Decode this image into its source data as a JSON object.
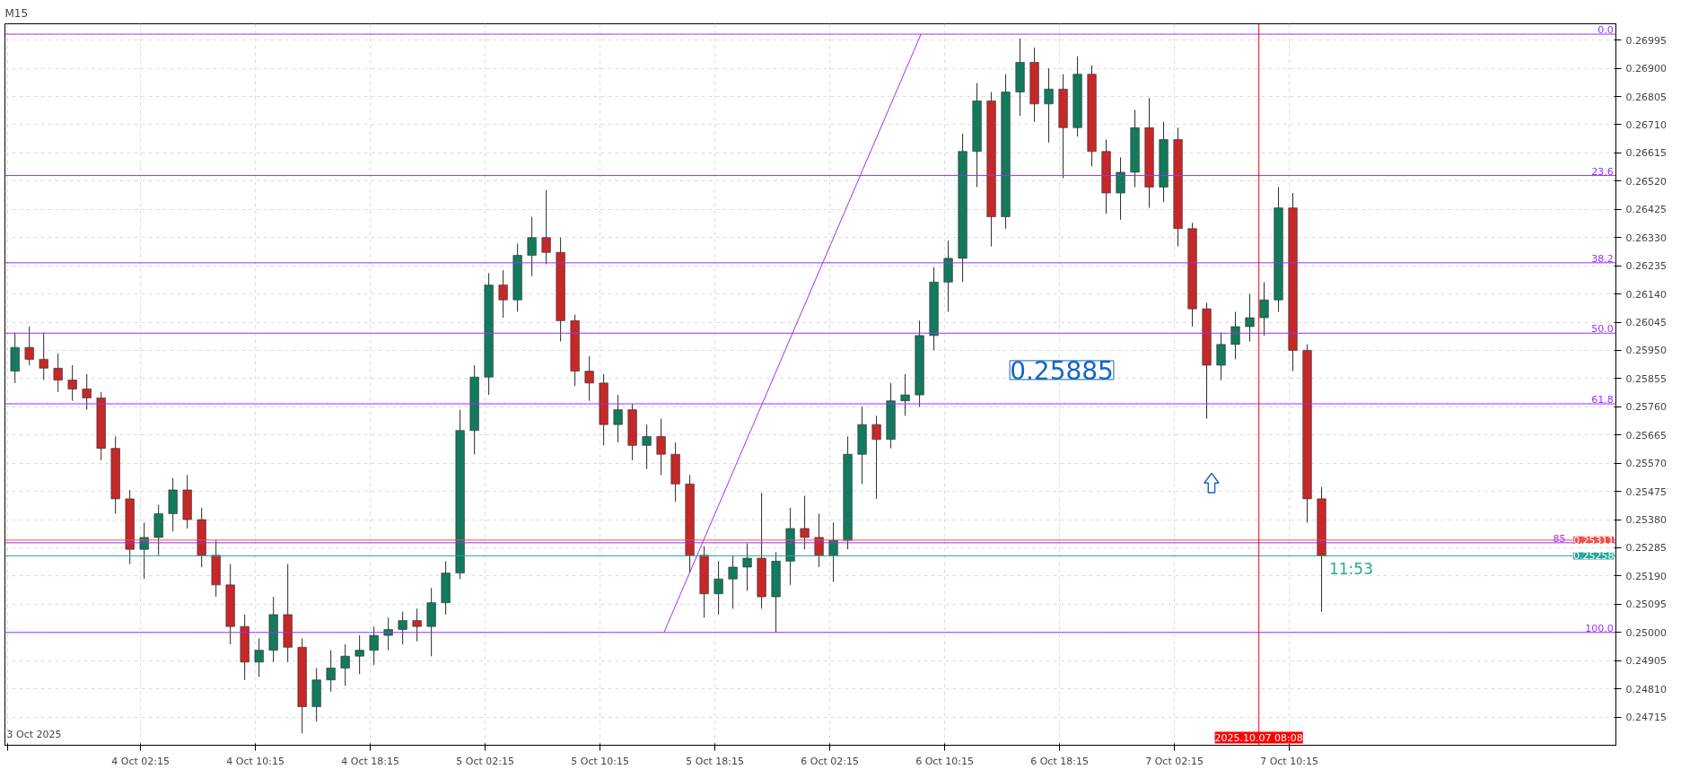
{
  "chart_data": {
    "type": "candlestick",
    "title": "M15",
    "x": [
      "2025-10-03T17:30",
      "2025-10-03T18:30",
      "2025-10-03T19:30",
      "2025-10-03T20:30",
      "2025-10-03T21:30",
      "2025-10-03T22:30",
      "2025-10-03T23:30",
      "2025-10-04T00:30",
      "2025-10-04T01:30",
      "2025-10-04T02:30",
      "2025-10-04T03:30",
      "2025-10-04T04:30",
      "2025-10-04T05:30",
      "2025-10-04T06:30",
      "2025-10-04T07:30",
      "2025-10-04T08:30",
      "2025-10-04T09:30",
      "2025-10-04T10:30",
      "2025-10-04T11:30",
      "2025-10-04T12:30",
      "2025-10-04T13:30",
      "2025-10-04T14:30",
      "2025-10-04T15:30",
      "2025-10-04T16:30",
      "2025-10-04T17:30",
      "2025-10-04T18:30",
      "2025-10-04T19:30",
      "2025-10-04T20:30",
      "2025-10-04T21:30",
      "2025-10-04T22:30",
      "2025-10-04T23:30",
      "2025-10-05T00:30",
      "2025-10-05T01:30",
      "2025-10-05T02:30",
      "2025-10-05T03:30",
      "2025-10-05T04:30",
      "2025-10-05T05:30",
      "2025-10-05T06:30",
      "2025-10-05T07:30",
      "2025-10-05T08:30",
      "2025-10-05T09:30",
      "2025-10-05T10:30",
      "2025-10-05T11:30",
      "2025-10-05T12:30",
      "2025-10-05T13:30",
      "2025-10-05T14:30",
      "2025-10-05T15:30",
      "2025-10-05T16:30",
      "2025-10-05T17:30",
      "2025-10-05T18:30",
      "2025-10-05T19:30",
      "2025-10-05T20:30",
      "2025-10-05T21:30",
      "2025-10-05T22:30",
      "2025-10-05T23:30",
      "2025-10-06T00:30",
      "2025-10-06T01:30",
      "2025-10-06T02:30",
      "2025-10-06T03:30",
      "2025-10-06T04:30",
      "2025-10-06T05:30",
      "2025-10-06T06:30",
      "2025-10-06T07:30",
      "2025-10-06T08:30",
      "2025-10-06T09:30",
      "2025-10-06T10:30",
      "2025-10-06T11:30",
      "2025-10-06T12:30",
      "2025-10-06T13:30",
      "2025-10-06T14:30",
      "2025-10-06T15:30",
      "2025-10-06T16:30",
      "2025-10-06T17:30",
      "2025-10-06T18:30",
      "2025-10-06T19:30",
      "2025-10-06T20:30",
      "2025-10-06T21:30",
      "2025-10-06T22:30",
      "2025-10-06T23:30",
      "2025-10-07T00:30",
      "2025-10-07T01:30",
      "2025-10-07T02:30",
      "2025-10-07T03:30",
      "2025-10-07T04:30",
      "2025-10-07T05:30",
      "2025-10-07T06:30",
      "2025-10-07T07:30",
      "2025-10-07T08:30",
      "2025-10-07T09:30",
      "2025-10-07T10:30",
      "2025-10-07T11:30",
      "2025-10-07T12:30"
    ],
    "ohlc": [
      [
        0.2588,
        0.2601,
        0.2584,
        0.2596
      ],
      [
        0.2596,
        0.2603,
        0.259,
        0.2592
      ],
      [
        0.2592,
        0.2601,
        0.2585,
        0.2589
      ],
      [
        0.2589,
        0.2594,
        0.2581,
        0.2585
      ],
      [
        0.2585,
        0.259,
        0.2578,
        0.2582
      ],
      [
        0.2582,
        0.2587,
        0.2575,
        0.2579
      ],
      [
        0.2579,
        0.2581,
        0.2558,
        0.2562
      ],
      [
        0.2562,
        0.2566,
        0.254,
        0.2545
      ],
      [
        0.2545,
        0.2548,
        0.2523,
        0.2528
      ],
      [
        0.2528,
        0.2537,
        0.2518,
        0.2532
      ],
      [
        0.2532,
        0.2543,
        0.2526,
        0.254
      ],
      [
        0.254,
        0.2552,
        0.2534,
        0.2548
      ],
      [
        0.2548,
        0.2553,
        0.2535,
        0.2538
      ],
      [
        0.2538,
        0.2542,
        0.2522,
        0.2526
      ],
      [
        0.2526,
        0.2531,
        0.2512,
        0.2516
      ],
      [
        0.2516,
        0.2523,
        0.2496,
        0.2502
      ],
      [
        0.2502,
        0.2506,
        0.2484,
        0.249
      ],
      [
        0.249,
        0.2498,
        0.2485,
        0.2494
      ],
      [
        0.2494,
        0.2512,
        0.249,
        0.2506
      ],
      [
        0.2506,
        0.2523,
        0.249,
        0.2495
      ],
      [
        0.2495,
        0.2498,
        0.2466,
        0.2475
      ],
      [
        0.2475,
        0.2488,
        0.247,
        0.2484
      ],
      [
        0.2484,
        0.2494,
        0.248,
        0.2488
      ],
      [
        0.2488,
        0.2496,
        0.2482,
        0.2492
      ],
      [
        0.2492,
        0.2499,
        0.2486,
        0.2494
      ],
      [
        0.2494,
        0.2502,
        0.2489,
        0.2499
      ],
      [
        0.2499,
        0.2505,
        0.2494,
        0.2501
      ],
      [
        0.2501,
        0.2507,
        0.2496,
        0.2504
      ],
      [
        0.2504,
        0.2508,
        0.2497,
        0.2502
      ],
      [
        0.2502,
        0.2515,
        0.2492,
        0.251
      ],
      [
        0.251,
        0.2524,
        0.2506,
        0.252
      ],
      [
        0.252,
        0.2575,
        0.2518,
        0.2568
      ],
      [
        0.2568,
        0.259,
        0.256,
        0.2586
      ],
      [
        0.2586,
        0.2621,
        0.258,
        0.2617
      ],
      [
        0.2617,
        0.2622,
        0.2606,
        0.2612
      ],
      [
        0.2612,
        0.2631,
        0.2608,
        0.2627
      ],
      [
        0.2627,
        0.264,
        0.262,
        0.2633
      ],
      [
        0.2633,
        0.2649,
        0.2624,
        0.2628
      ],
      [
        0.2628,
        0.2633,
        0.2598,
        0.2605
      ],
      [
        0.2605,
        0.2607,
        0.2583,
        0.2588
      ],
      [
        0.2588,
        0.2593,
        0.2578,
        0.2584
      ],
      [
        0.2584,
        0.2587,
        0.2563,
        0.257
      ],
      [
        0.257,
        0.258,
        0.2564,
        0.2575
      ],
      [
        0.2575,
        0.2577,
        0.2558,
        0.2563
      ],
      [
        0.2563,
        0.257,
        0.2555,
        0.2566
      ],
      [
        0.2566,
        0.2572,
        0.2553,
        0.256
      ],
      [
        0.256,
        0.2564,
        0.2544,
        0.255
      ],
      [
        0.255,
        0.2553,
        0.252,
        0.2526
      ],
      [
        0.2526,
        0.2529,
        0.2505,
        0.2513
      ],
      [
        0.2513,
        0.2524,
        0.2506,
        0.2518
      ],
      [
        0.2518,
        0.2526,
        0.2508,
        0.2522
      ],
      [
        0.2522,
        0.253,
        0.2514,
        0.2525
      ],
      [
        0.2525,
        0.2547,
        0.2508,
        0.2512
      ],
      [
        0.2512,
        0.2527,
        0.25,
        0.2524
      ],
      [
        0.2524,
        0.2542,
        0.2516,
        0.2535
      ],
      [
        0.2535,
        0.2546,
        0.2528,
        0.2532
      ],
      [
        0.2532,
        0.254,
        0.2522,
        0.2526
      ],
      [
        0.2526,
        0.2537,
        0.2517,
        0.2531
      ],
      [
        0.2531,
        0.2566,
        0.2528,
        0.256
      ],
      [
        0.256,
        0.2576,
        0.255,
        0.257
      ],
      [
        0.257,
        0.2573,
        0.2545,
        0.2565
      ],
      [
        0.2565,
        0.2584,
        0.2562,
        0.2578
      ],
      [
        0.2578,
        0.2587,
        0.2573,
        0.258
      ],
      [
        0.258,
        0.2605,
        0.2576,
        0.26
      ],
      [
        0.26,
        0.2623,
        0.2595,
        0.2618
      ],
      [
        0.2618,
        0.2632,
        0.2608,
        0.2626
      ],
      [
        0.2626,
        0.2668,
        0.2618,
        0.2662
      ],
      [
        0.2662,
        0.2685,
        0.265,
        0.2679
      ],
      [
        0.2679,
        0.2682,
        0.263,
        0.264
      ],
      [
        0.264,
        0.2688,
        0.2636,
        0.2682
      ],
      [
        0.2682,
        0.27,
        0.2674,
        0.2692
      ],
      [
        0.2692,
        0.2697,
        0.2672,
        0.2678
      ],
      [
        0.2678,
        0.269,
        0.2665,
        0.2683
      ],
      [
        0.2683,
        0.2688,
        0.2653,
        0.267
      ],
      [
        0.267,
        0.2694,
        0.2667,
        0.2688
      ],
      [
        0.2688,
        0.2691,
        0.2657,
        0.2662
      ],
      [
        0.2662,
        0.2666,
        0.2641,
        0.2648
      ],
      [
        0.2648,
        0.266,
        0.2639,
        0.2655
      ],
      [
        0.2655,
        0.2676,
        0.265,
        0.267
      ],
      [
        0.267,
        0.268,
        0.2643,
        0.265
      ],
      [
        0.265,
        0.2672,
        0.2645,
        0.2666
      ],
      [
        0.2666,
        0.267,
        0.263,
        0.2636
      ],
      [
        0.2636,
        0.2638,
        0.2603,
        0.2609
      ],
      [
        0.2609,
        0.2611,
        0.2572,
        0.259
      ],
      [
        0.259,
        0.2601,
        0.2585,
        0.2597
      ],
      [
        0.2597,
        0.2608,
        0.2592,
        0.2603
      ],
      [
        0.2603,
        0.2614,
        0.2598,
        0.2606
      ],
      [
        0.2606,
        0.2618,
        0.26,
        0.2612
      ],
      [
        0.2612,
        0.265,
        0.2608,
        0.2643
      ],
      [
        0.2643,
        0.2648,
        0.2588,
        0.2595
      ],
      [
        0.2595,
        0.2597,
        0.2537,
        0.2545
      ],
      [
        0.2545,
        0.2549,
        0.2507,
        0.25258
      ]
    ],
    "series": [
      {
        "type": "line",
        "color": "#9b30ff",
        "x": [
          "2025-10-05T14:42",
          "2025-10-06T08:36"
        ],
        "values": [
          0.25,
          0.27015
        ]
      }
    ],
    "xlim": [
      "2025-10-03T16:48",
      "2025-10-08T09:00"
    ],
    "ylim": [
      0.2462,
      0.2705
    ],
    "xticks": [
      {
        "value": "2025-10-03T17:00",
        "label": null
      },
      {
        "value": "2025-10-04T02:15",
        "label": "4 Oct 02:15"
      },
      {
        "value": "2025-10-04T10:15",
        "label": "4 Oct 10:15"
      },
      {
        "value": "2025-10-04T18:15",
        "label": "4 Oct 18:15"
      },
      {
        "value": "2025-10-05T02:15",
        "label": "5 Oct 02:15"
      },
      {
        "value": "2025-10-05T10:15",
        "label": "5 Oct 10:15"
      },
      {
        "value": "2025-10-05T18:15",
        "label": "5 Oct 18:15"
      },
      {
        "value": "2025-10-06T02:15",
        "label": "6 Oct 02:15"
      },
      {
        "value": "2025-10-06T10:15",
        "label": "6 Oct 10:15"
      },
      {
        "value": "2025-10-06T18:15",
        "label": "6 Oct 18:15"
      },
      {
        "value": "2025-10-07T02:15",
        "label": "7 Oct 02:15"
      },
      {
        "value": "2025-10-07T10:15",
        "label": "7 Oct 10:15"
      }
    ],
    "yticks": [
      {
        "value": 0.24715,
        "label": "0.24715"
      },
      {
        "value": 0.2481,
        "label": "0.24810"
      },
      {
        "value": 0.24905,
        "label": "0.24905"
      },
      {
        "value": 0.25,
        "label": "0.25000"
      },
      {
        "value": 0.25095,
        "label": "0.25095"
      },
      {
        "value": 0.2519,
        "label": "0.25190"
      },
      {
        "value": 0.25285,
        "label": "0.25285"
      },
      {
        "value": 0.2538,
        "label": "0.25380"
      },
      {
        "value": 0.25475,
        "label": "0.25475"
      },
      {
        "value": 0.2557,
        "label": "0.25570"
      },
      {
        "value": 0.25665,
        "label": "0.25665"
      },
      {
        "value": 0.2576,
        "label": "0.25760"
      },
      {
        "value": 0.25855,
        "label": "0.25855"
      },
      {
        "value": 0.2595,
        "label": "0.25950"
      },
      {
        "value": 0.26045,
        "label": "0.26045"
      },
      {
        "value": 0.2614,
        "label": "0.26140"
      },
      {
        "value": 0.26235,
        "label": "0.26235"
      },
      {
        "value": 0.2633,
        "label": "0.26330"
      },
      {
        "value": 0.26425,
        "label": "0.26425"
      },
      {
        "value": 0.2652,
        "label": "0.26520"
      },
      {
        "value": 0.26615,
        "label": "0.26615"
      },
      {
        "value": 0.2671,
        "label": "0.26710"
      },
      {
        "value": 0.26805,
        "label": "0.26805"
      },
      {
        "value": 0.269,
        "label": "0.26900"
      },
      {
        "value": 0.26995,
        "label": "0.26995"
      }
    ],
    "ref_lines": [
      {
        "axis": "y",
        "value": 0.27015,
        "color": "#9b30ff"
      },
      {
        "axis": "y",
        "value": 0.26539,
        "color": "#9b30ff"
      },
      {
        "axis": "y",
        "value": 0.26245,
        "color": "#9b30ff"
      },
      {
        "axis": "y",
        "value": 0.26008,
        "color": "#9b30ff"
      },
      {
        "axis": "y",
        "value": 0.2577,
        "color": "#9b30ff"
      },
      {
        "axis": "y",
        "value": 0.25302,
        "color": "#9b30ff"
      },
      {
        "axis": "y",
        "value": 0.25,
        "color": "#9b30ff"
      },
      {
        "axis": "y",
        "value": 0.25311,
        "label": "0.25311",
        "color": "#f0504a"
      },
      {
        "axis": "y",
        "value": 0.25258,
        "label": "0.25258",
        "color": "#26a69a"
      },
      {
        "axis": "x",
        "value": "2025-10-07T08:08",
        "label": "2025.10.07 08:08",
        "color": "#ff0000"
      }
    ],
    "annotations": [
      "0.25885",
      "11:53",
      "3 Oct 2025",
      {
        "text": "0.0",
        "x": "2025-10-08T08:50",
        "y": 0.27015
      },
      {
        "text": "23.6",
        "x": "2025-10-08T08:50",
        "y": 0.26539
      },
      {
        "text": "38.2",
        "x": "2025-10-08T08:50",
        "y": 0.26245
      },
      {
        "text": "50.0",
        "x": "2025-10-08T08:50",
        "y": 0.26008
      },
      {
        "text": "61.8",
        "x": "2025-10-08T08:50",
        "y": 0.2577
      },
      {
        "text": "85",
        "x": "2025-10-08T05:30",
        "y": 0.25302
      },
      {
        "text": "100.0",
        "x": "2025-10-08T08:50",
        "y": 0.25
      }
    ],
    "grid": true
  }
}
